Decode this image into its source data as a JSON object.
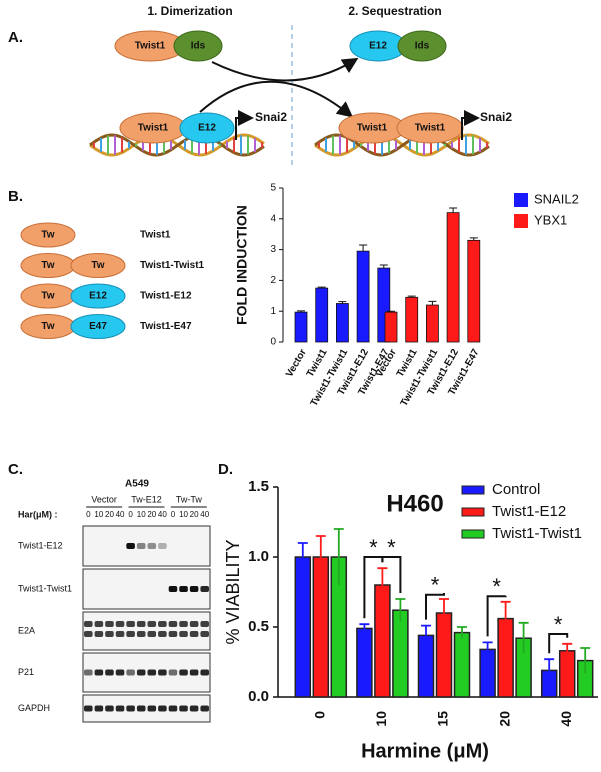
{
  "panel_a": {
    "label": "A.",
    "step1": "1. Dimerization",
    "step2": "2. Sequestration",
    "top_left": [
      "Twist1",
      "Ids"
    ],
    "top_right": [
      "E12",
      "Ids"
    ],
    "bottom_left": [
      "Twist1",
      "E12"
    ],
    "bottom_left_gene": "Snai2",
    "bottom_right": [
      "Twist1",
      "Twist1"
    ],
    "bottom_right_gene": "Snai2"
  },
  "panel_b": {
    "label": "B.",
    "constructs": [
      {
        "parts": [
          "Tw"
        ],
        "name": "Twist1"
      },
      {
        "parts": [
          "Tw",
          "Tw"
        ],
        "name": "Twist1-Twist1"
      },
      {
        "parts": [
          "Tw",
          "E12"
        ],
        "name": "Twist1-E12"
      },
      {
        "parts": [
          "Tw",
          "E47"
        ],
        "name": "Twist1-E47"
      }
    ]
  },
  "panel_c": {
    "label": "C.",
    "cell_line": "A549",
    "groups": [
      "Vector",
      "Tw-E12",
      "Tw-Tw"
    ],
    "dose_label": "Har(μM) :",
    "doses": [
      "0",
      "10",
      "20",
      "40"
    ],
    "rows": [
      "Twist1-E12",
      "Twist1-Twist1",
      "E2A",
      "P21",
      "GAPDH"
    ]
  },
  "panel_d": {
    "label": "D."
  },
  "chart_data": [
    {
      "type": "bar",
      "y_label": "FOLD INDUCTION",
      "categories": [
        "Vector",
        "Twist1",
        "Twist1-Twist1",
        "Twist1-E12",
        "Twist1-E47"
      ],
      "series": [
        {
          "name": "SNAIL2",
          "color": "#1a1aff",
          "values": [
            0.97,
            1.75,
            1.25,
            2.95,
            2.4
          ],
          "errors": [
            0.04,
            0.03,
            0.06,
            0.2,
            0.1
          ]
        },
        {
          "name": "YBX1",
          "color": "#ff1a1a",
          "values": [
            0.97,
            1.45,
            1.2,
            4.2,
            3.3
          ],
          "errors": [
            0.03,
            0.04,
            0.12,
            0.15,
            0.08
          ]
        }
      ],
      "ylim": [
        0,
        5
      ],
      "yticks": [
        0,
        1,
        2,
        3,
        4,
        5
      ],
      "legend": "right"
    },
    {
      "type": "bar",
      "title": "H460",
      "x_label": "Harmine (μM)",
      "y_label": "% VIABILITY",
      "categories": [
        "0",
        "10",
        "15",
        "20",
        "40"
      ],
      "series": [
        {
          "name": "Control",
          "color": "#1a1aff",
          "values": [
            1.0,
            0.49,
            0.44,
            0.34,
            0.19
          ],
          "errors": [
            0.1,
            0.03,
            0.07,
            0.05,
            0.08
          ]
        },
        {
          "name": "Twist1-E12",
          "color": "#ff1a1a",
          "values": [
            1.0,
            0.8,
            0.6,
            0.56,
            0.33
          ],
          "errors": [
            0.15,
            0.12,
            0.1,
            0.12,
            0.05
          ]
        },
        {
          "name": "Twist1-Twist1",
          "color": "#22cc22",
          "values": [
            1.0,
            0.62,
            0.46,
            0.42,
            0.26
          ],
          "errors": [
            0.2,
            0.08,
            0.04,
            0.11,
            0.09
          ]
        }
      ],
      "ylim": [
        0,
        1.5
      ],
      "yticks": [
        {
          "value": 0,
          "label": "0.0"
        },
        {
          "value": 0.5,
          "label": "0.5"
        },
        {
          "value": 1,
          "label": "1.0"
        },
        {
          "value": 1.5,
          "label": "1.5"
        }
      ],
      "annotations": [
        "*",
        "*",
        "*",
        "*",
        "*"
      ],
      "legend": "upper right"
    }
  ]
}
